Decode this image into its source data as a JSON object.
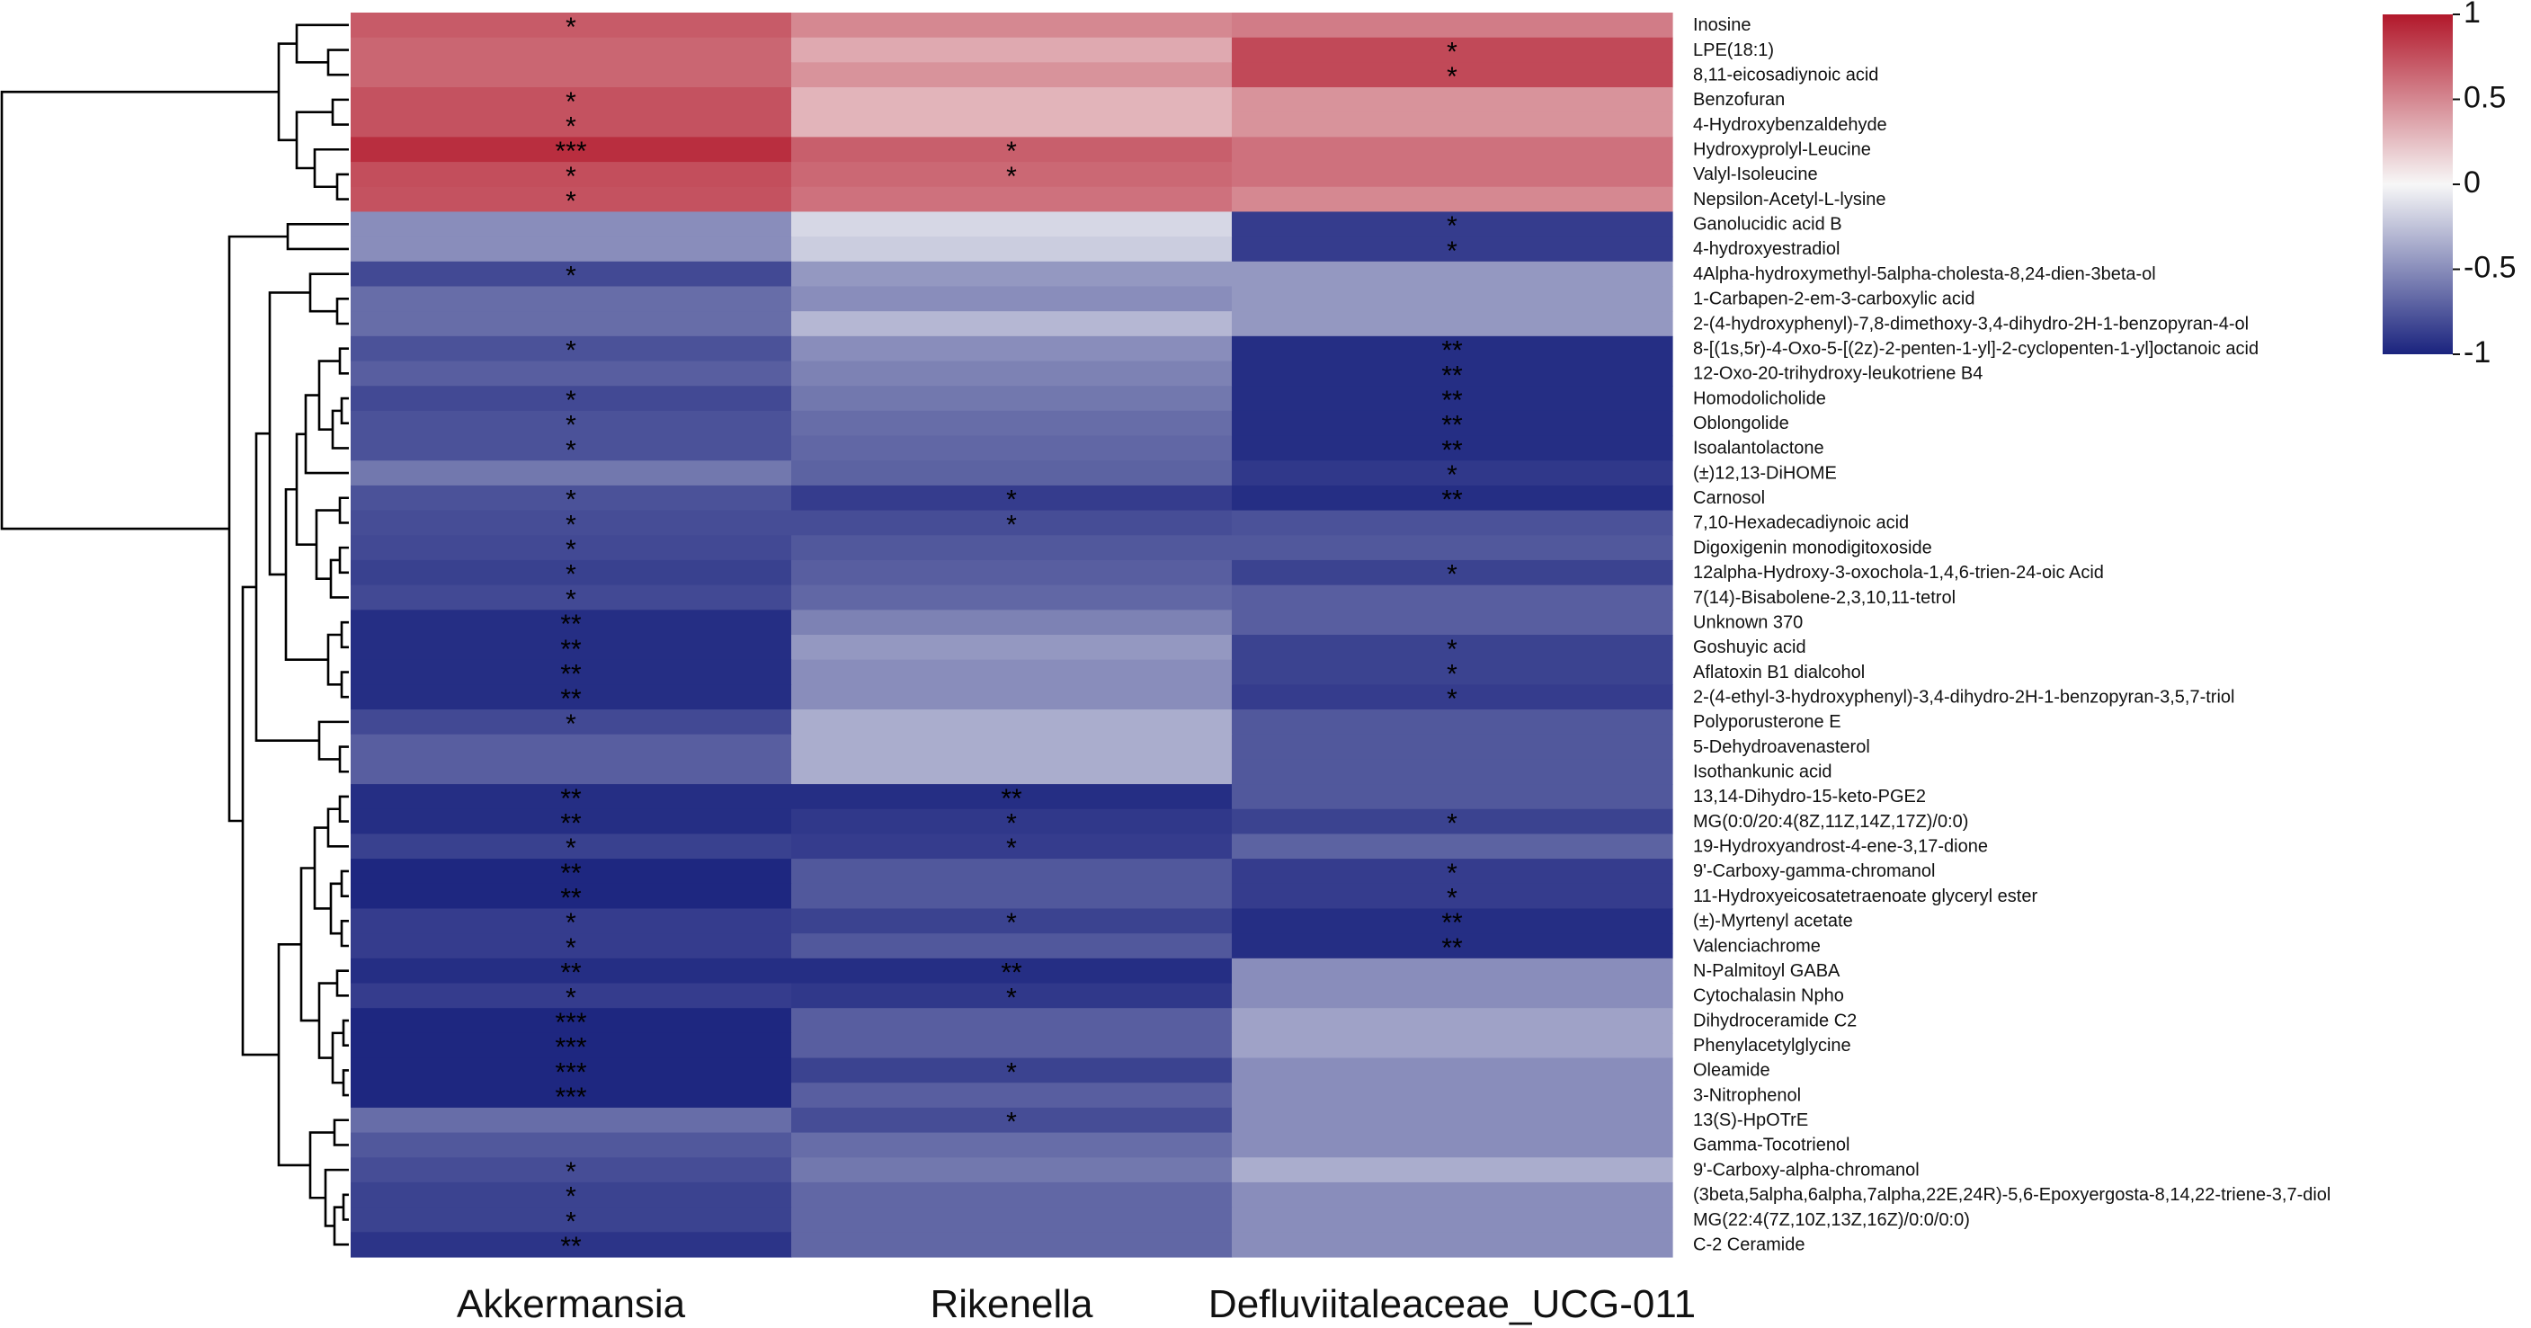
{
  "chart_data": {
    "type": "heatmap",
    "title": "",
    "columns": [
      "Akkermansia",
      "Rikenella",
      "Defluviitaleaceae_UCG-011"
    ],
    "rows": [
      {
        "label": "Inosine",
        "values": [
          0.7,
          0.5,
          0.55
        ],
        "stars": [
          "*",
          "",
          ""
        ]
      },
      {
        "label": "LPE(18:1)",
        "values": [
          0.65,
          0.35,
          0.78
        ],
        "stars": [
          "",
          "",
          "*"
        ]
      },
      {
        "label": "8,11-eicosadiynoic acid",
        "values": [
          0.65,
          0.45,
          0.78
        ],
        "stars": [
          "",
          "",
          "*"
        ]
      },
      {
        "label": "Benzofuran",
        "values": [
          0.74,
          0.3,
          0.45
        ],
        "stars": [
          "*",
          "",
          ""
        ]
      },
      {
        "label": "4-Hydroxybenzaldehyde",
        "values": [
          0.74,
          0.3,
          0.45
        ],
        "stars": [
          "*",
          "",
          ""
        ]
      },
      {
        "label": "Hydroxyprolyl-Leucine",
        "values": [
          0.9,
          0.68,
          0.6
        ],
        "stars": [
          "***",
          "*",
          ""
        ]
      },
      {
        "label": "Valyl-Isoleucine",
        "values": [
          0.76,
          0.64,
          0.6
        ],
        "stars": [
          "*",
          "*",
          ""
        ]
      },
      {
        "label": "Nepsilon-Acetyl-L-lysine",
        "values": [
          0.74,
          0.6,
          0.5
        ],
        "stars": [
          "*",
          "",
          ""
        ]
      },
      {
        "label": "Ganolucidic acid B",
        "values": [
          -0.5,
          -0.15,
          -0.88
        ],
        "stars": [
          "",
          "",
          "*"
        ]
      },
      {
        "label": "4-hydroxyestradiol",
        "values": [
          -0.5,
          -0.2,
          -0.88
        ],
        "stars": [
          "",
          "",
          "*"
        ]
      },
      {
        "label": "4Alpha-hydroxymethyl-5alpha-cholesta-8,24-dien-3beta-ol",
        "values": [
          -0.82,
          -0.45,
          -0.45
        ],
        "stars": [
          "*",
          "",
          ""
        ]
      },
      {
        "label": "1-Carbapen-2-em-3-carboxylic acid",
        "values": [
          -0.65,
          -0.5,
          -0.45
        ],
        "stars": [
          "",
          "",
          ""
        ]
      },
      {
        "label": "2-(4-hydroxyphenyl)-7,8-dimethoxy-3,4-dihydro-2H-1-benzopyran-4-ol",
        "values": [
          -0.65,
          -0.3,
          -0.45
        ],
        "stars": [
          "",
          "",
          ""
        ]
      },
      {
        "label": "8-[(1s,5r)-4-Oxo-5-[(2z)-2-penten-1-yl]-2-cyclopenten-1-yl]octanoic acid",
        "values": [
          -0.78,
          -0.5,
          -0.95
        ],
        "stars": [
          "*",
          "",
          "**"
        ]
      },
      {
        "label": "12-Oxo-20-trihydroxy-leukotriene B4",
        "values": [
          -0.72,
          -0.55,
          -0.95
        ],
        "stars": [
          "",
          "",
          "**"
        ]
      },
      {
        "label": "Homodolicholide",
        "values": [
          -0.82,
          -0.6,
          -0.95
        ],
        "stars": [
          "*",
          "",
          "**"
        ]
      },
      {
        "label": "Oblongolide",
        "values": [
          -0.78,
          -0.65,
          -0.95
        ],
        "stars": [
          "*",
          "",
          "**"
        ]
      },
      {
        "label": "Isoalantolactone",
        "values": [
          -0.78,
          -0.68,
          -0.95
        ],
        "stars": [
          "*",
          "",
          "**"
        ]
      },
      {
        "label": "(±)12,13-DiHOME",
        "values": [
          -0.6,
          -0.7,
          -0.9
        ],
        "stars": [
          "",
          "",
          "*"
        ]
      },
      {
        "label": "Carnosol",
        "values": [
          -0.78,
          -0.88,
          -0.95
        ],
        "stars": [
          "*",
          "*",
          "**"
        ]
      },
      {
        "label": "7,10-Hexadecadiynoic acid",
        "values": [
          -0.8,
          -0.8,
          -0.78
        ],
        "stars": [
          "*",
          "*",
          ""
        ]
      },
      {
        "label": "Digoxigenin monodigitoxoside",
        "values": [
          -0.82,
          -0.75,
          -0.75
        ],
        "stars": [
          "*",
          "",
          ""
        ]
      },
      {
        "label": "12alpha-Hydroxy-3-oxochola-1,4,6-trien-24-oic Acid",
        "values": [
          -0.86,
          -0.72,
          -0.85
        ],
        "stars": [
          "*",
          "",
          "*"
        ]
      },
      {
        "label": "7(14)-Bisabolene-2,3,10,11-tetrol",
        "values": [
          -0.82,
          -0.68,
          -0.72
        ],
        "stars": [
          "*",
          "",
          ""
        ]
      },
      {
        "label": "Unknown 370",
        "values": [
          -0.95,
          -0.55,
          -0.72
        ],
        "stars": [
          "**",
          "",
          ""
        ]
      },
      {
        "label": "Goshuyic acid",
        "values": [
          -0.95,
          -0.45,
          -0.85
        ],
        "stars": [
          "**",
          "",
          "*"
        ]
      },
      {
        "label": "Aflatoxin B1 dialcohol",
        "values": [
          -0.95,
          -0.5,
          -0.85
        ],
        "stars": [
          "**",
          "",
          "*"
        ]
      },
      {
        "label": "2-(4-ethyl-3-hydroxyphenyl)-3,4-dihydro-2H-1-benzopyran-3,5,7-triol",
        "values": [
          -0.95,
          -0.5,
          -0.88
        ],
        "stars": [
          "**",
          "",
          "*"
        ]
      },
      {
        "label": "Polyporusterone E",
        "values": [
          -0.82,
          -0.35,
          -0.75
        ],
        "stars": [
          "*",
          "",
          ""
        ]
      },
      {
        "label": "5-Dehydroavenasterol",
        "values": [
          -0.72,
          -0.35,
          -0.75
        ],
        "stars": [
          "",
          "",
          ""
        ]
      },
      {
        "label": "Isothankunic acid",
        "values": [
          -0.72,
          -0.35,
          -0.75
        ],
        "stars": [
          "",
          "",
          ""
        ]
      },
      {
        "label": "13,14-Dihydro-15-keto-PGE2",
        "values": [
          -0.95,
          -0.95,
          -0.75
        ],
        "stars": [
          "**",
          "**",
          ""
        ]
      },
      {
        "label": "MG(0:0/20:4(8Z,11Z,14Z,17Z)/0:0)",
        "values": [
          -0.95,
          -0.9,
          -0.85
        ],
        "stars": [
          "**",
          "*",
          "*"
        ]
      },
      {
        "label": "19-Hydroxyandrost-4-ene-3,17-dione",
        "values": [
          -0.86,
          -0.88,
          -0.7
        ],
        "stars": [
          "*",
          "*",
          ""
        ]
      },
      {
        "label": "9'-Carboxy-gamma-chromanol",
        "values": [
          -0.98,
          -0.75,
          -0.88
        ],
        "stars": [
          "**",
          "",
          "*"
        ]
      },
      {
        "label": "11-Hydroxyeicosatetraenoate glyceryl ester",
        "values": [
          -0.98,
          -0.75,
          -0.88
        ],
        "stars": [
          "**",
          "",
          "*"
        ]
      },
      {
        "label": "(±)-Myrtenyl acetate",
        "values": [
          -0.88,
          -0.85,
          -0.95
        ],
        "stars": [
          "*",
          "*",
          "**"
        ]
      },
      {
        "label": "Valenciachrome",
        "values": [
          -0.88,
          -0.75,
          -0.95
        ],
        "stars": [
          "*",
          "",
          "**"
        ]
      },
      {
        "label": "N-Palmitoyl GABA",
        "values": [
          -0.95,
          -0.95,
          -0.5
        ],
        "stars": [
          "**",
          "**",
          ""
        ]
      },
      {
        "label": "Cytochalasin Npho",
        "values": [
          -0.88,
          -0.9,
          -0.5
        ],
        "stars": [
          "*",
          "*",
          ""
        ]
      },
      {
        "label": "Dihydroceramide C2",
        "values": [
          -0.98,
          -0.72,
          -0.4
        ],
        "stars": [
          "***",
          "",
          ""
        ]
      },
      {
        "label": "Phenylacetylglycine",
        "values": [
          -0.98,
          -0.72,
          -0.4
        ],
        "stars": [
          "***",
          "",
          ""
        ]
      },
      {
        "label": "Oleamide",
        "values": [
          -0.98,
          -0.85,
          -0.5
        ],
        "stars": [
          "***",
          "*",
          ""
        ]
      },
      {
        "label": "3-Nitrophenol",
        "values": [
          -0.98,
          -0.72,
          -0.5
        ],
        "stars": [
          "***",
          "",
          ""
        ]
      },
      {
        "label": "13(S)-HpOTrE",
        "values": [
          -0.65,
          -0.8,
          -0.5
        ],
        "stars": [
          "",
          "*",
          ""
        ]
      },
      {
        "label": "Gamma-Tocotrienol",
        "values": [
          -0.75,
          -0.65,
          -0.5
        ],
        "stars": [
          "",
          "",
          ""
        ]
      },
      {
        "label": "9'-Carboxy-alpha-chromanol",
        "values": [
          -0.8,
          -0.6,
          -0.35
        ],
        "stars": [
          "*",
          "",
          ""
        ]
      },
      {
        "label": "(3beta,5alpha,6alpha,7alpha,22E,24R)-5,6-Epoxyergosta-8,14,22-triene-3,7-diol",
        "values": [
          -0.85,
          -0.68,
          -0.5
        ],
        "stars": [
          "*",
          "",
          ""
        ]
      },
      {
        "label": "MG(22:4(7Z,10Z,13Z,16Z)/0:0/0:0)",
        "values": [
          -0.85,
          -0.68,
          -0.5
        ],
        "stars": [
          "*",
          "",
          ""
        ]
      },
      {
        "label": "C-2 Ceramide",
        "values": [
          -0.92,
          -0.68,
          -0.5
        ],
        "stars": [
          "**",
          "",
          ""
        ]
      }
    ],
    "colorbar": {
      "range": [
        -1,
        1
      ],
      "ticks": [
        1,
        0.5,
        0,
        -0.5,
        -1
      ],
      "tick_labels": [
        "1",
        "0.5",
        "0",
        "-0.5",
        "-1"
      ],
      "colors": {
        "high": "#b2182b",
        "mid": "#f7f7f7",
        "low": "#1a237e"
      }
    },
    "dendrogram": "row",
    "significance_markers": [
      "*",
      "**",
      "***"
    ]
  }
}
